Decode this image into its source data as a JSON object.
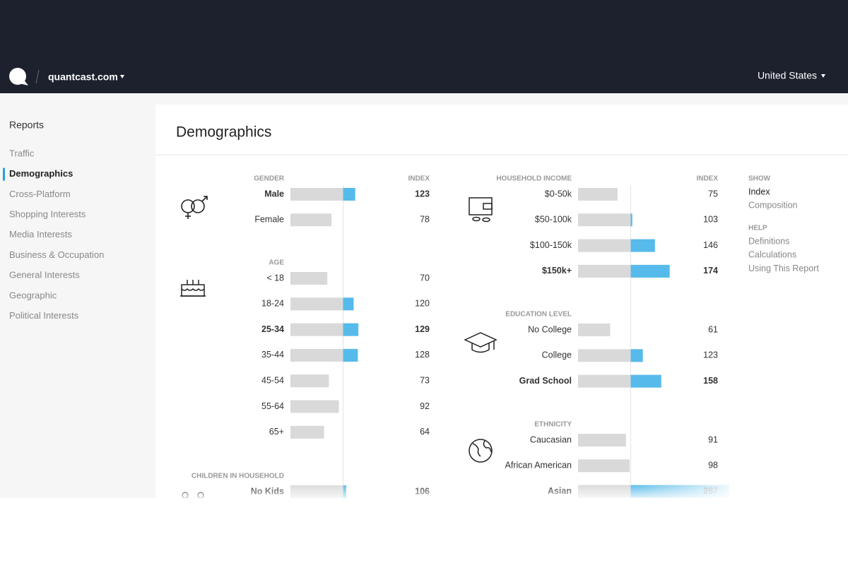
{
  "header": {
    "site": "quantcast.com",
    "country": "United States"
  },
  "sidebar": {
    "title": "Reports",
    "active": 1,
    "items": [
      "Traffic",
      "Demographics",
      "Cross-Platform",
      "Shopping Interests",
      "Media Interests",
      "Business & Occupation",
      "General Interests",
      "Geographic",
      "Political Interests"
    ]
  },
  "page_title": "Demographics",
  "columns": [
    {
      "index_label": "INDEX",
      "sections": [
        {
          "title": "GENDER",
          "rows": [
            {
              "label": "Male",
              "value": 123,
              "bold": true
            },
            {
              "label": "Female",
              "value": 78
            }
          ]
        },
        {
          "title": "AGE",
          "rows": [
            {
              "label": "< 18",
              "value": 70
            },
            {
              "label": "18-24",
              "value": 120
            },
            {
              "label": "25-34",
              "value": 129,
              "bold": true
            },
            {
              "label": "35-44",
              "value": 128
            },
            {
              "label": "45-54",
              "value": 73
            },
            {
              "label": "55-64",
              "value": 92
            },
            {
              "label": "65+",
              "value": 64
            }
          ]
        },
        {
          "title": "CHILDREN IN HOUSEHOLD",
          "rows": [
            {
              "label": "No Kids",
              "value": 106,
              "bold": true
            }
          ]
        }
      ]
    },
    {
      "index_label": "INDEX",
      "sections": [
        {
          "title": "HOUSEHOLD INCOME",
          "rows": [
            {
              "label": "$0-50k",
              "value": 75
            },
            {
              "label": "$50-100k",
              "value": 103
            },
            {
              "label": "$100-150k",
              "value": 146
            },
            {
              "label": "$150k+",
              "value": 174,
              "bold": true
            }
          ]
        },
        {
          "title": "EDUCATION LEVEL",
          "rows": [
            {
              "label": "No College",
              "value": 61
            },
            {
              "label": "College",
              "value": 123
            },
            {
              "label": "Grad School",
              "value": 158,
              "bold": true
            }
          ]
        },
        {
          "title": "ETHNICITY",
          "rows": [
            {
              "label": "Caucasian",
              "value": 91
            },
            {
              "label": "African American",
              "value": 98
            },
            {
              "label": "Asian",
              "value": 287,
              "bold": true
            }
          ]
        }
      ]
    }
  ],
  "side_panel": [
    {
      "title": "SHOW",
      "items": [
        "Index",
        "Composition"
      ],
      "active": 0
    },
    {
      "title": "HELP",
      "items": [
        "Definitions",
        "Calculations",
        "Using This Report"
      ]
    }
  ]
}
